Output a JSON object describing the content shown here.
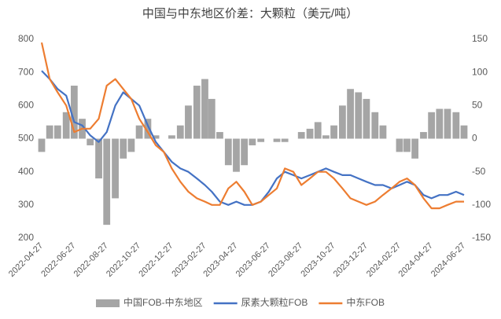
{
  "chart_data": {
    "type": "bar_line_combo",
    "title": "中国与中东地区价差：大颗粒（美元/吨）",
    "x": [
      "2022-04-27",
      "2022-05-12",
      "2022-05-27",
      "2022-06-12",
      "2022-06-27",
      "2022-07-12",
      "2022-07-27",
      "2022-08-12",
      "2022-08-27",
      "2022-09-12",
      "2022-09-27",
      "2022-10-12",
      "2022-10-27",
      "2022-11-12",
      "2022-11-27",
      "2022-12-12",
      "2022-12-27",
      "2023-01-12",
      "2023-01-27",
      "2023-02-12",
      "2023-02-27",
      "2023-03-12",
      "2023-03-27",
      "2023-04-12",
      "2023-04-27",
      "2023-05-12",
      "2023-05-27",
      "2023-06-12",
      "2023-06-27",
      "2023-07-12",
      "2023-07-27",
      "2023-08-12",
      "2023-08-27",
      "2023-09-12",
      "2023-09-27",
      "2023-10-12",
      "2023-10-27",
      "2023-11-12",
      "2023-11-27",
      "2023-12-12",
      "2023-12-27",
      "2024-01-12",
      "2024-01-27",
      "2024-02-12",
      "2024-02-27",
      "2024-03-12",
      "2024-03-27",
      "2024-04-12",
      "2024-04-27",
      "2024-05-12",
      "2024-05-27",
      "2024-06-12",
      "2024-06-27"
    ],
    "xlim": [
      "2022-04-27",
      "2024-06-27"
    ],
    "xticks": [
      "2022-04-27",
      "2022-06-27",
      "2022-08-27",
      "2022-10-27",
      "2022-12-27",
      "2023-02-27",
      "2023-04-27",
      "2023-06-27",
      "2023-08-27",
      "2023-10-27",
      "2023-12-27",
      "2024-02-27",
      "2024-04-27",
      "2024-06-27"
    ],
    "ylim": [
      200,
      800
    ],
    "yticks": [
      200,
      300,
      400,
      500,
      600,
      700,
      800
    ],
    "y2lim": [
      -150,
      150
    ],
    "y2ticks": [
      -150,
      -100,
      -50,
      0,
      50,
      100,
      150
    ],
    "legend": "bottom",
    "series": [
      {
        "name": "中国FOB-中东地区",
        "type": "bar",
        "axis": "y2",
        "color": "#a5a5a5",
        "values": [
          -20,
          20,
          20,
          40,
          80,
          30,
          -10,
          -60,
          -130,
          -90,
          -30,
          -20,
          20,
          30,
          5,
          0,
          5,
          20,
          50,
          80,
          90,
          60,
          10,
          -40,
          -50,
          -40,
          -10,
          -5,
          0,
          -5,
          -5,
          0,
          10,
          15,
          25,
          5,
          20,
          50,
          75,
          70,
          60,
          40,
          20,
          0,
          -20,
          -20,
          -30,
          10,
          40,
          45,
          45,
          40,
          20
        ]
      },
      {
        "name": "尿素大颗粒FOB",
        "type": "line",
        "color": "#4472c4",
        "values": [
          705,
          680,
          650,
          630,
          550,
          540,
          510,
          490,
          520,
          600,
          640,
          620,
          600,
          540,
          490,
          460,
          430,
          410,
          400,
          380,
          360,
          340,
          310,
          300,
          310,
          300,
          300,
          310,
          340,
          380,
          400,
          390,
          380,
          390,
          400,
          410,
          400,
          390,
          390,
          380,
          370,
          360,
          360,
          350,
          360,
          370,
          360,
          330,
          320,
          330,
          330,
          340,
          330
        ]
      },
      {
        "name": "中东FOB",
        "type": "line",
        "color": "#ed7d31",
        "values": [
          790,
          680,
          640,
          600,
          520,
          530,
          530,
          560,
          660,
          680,
          650,
          620,
          560,
          520,
          480,
          460,
          410,
          370,
          340,
          320,
          310,
          300,
          300,
          350,
          370,
          340,
          300,
          310,
          330,
          350,
          410,
          400,
          360,
          380,
          400,
          400,
          380,
          350,
          320,
          310,
          300,
          310,
          330,
          350,
          370,
          380,
          360,
          320,
          290,
          290,
          300,
          310,
          310
        ]
      }
    ]
  }
}
